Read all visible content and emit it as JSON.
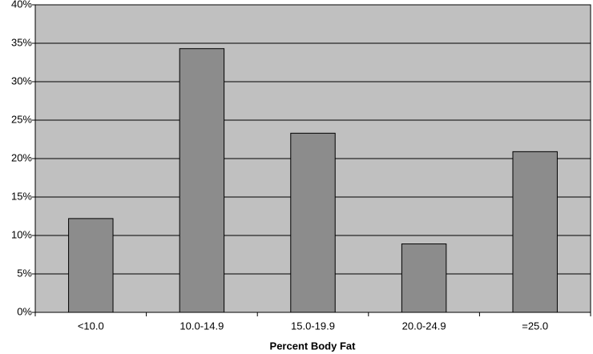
{
  "chart_data": {
    "type": "bar",
    "x_label": "Percent Body Fat",
    "categories": [
      "<10.0",
      "10.0-14.9",
      "15.0-19.9",
      "20.0-24.9",
      "=25.0"
    ],
    "values": [
      12.2,
      34.3,
      23.3,
      8.9,
      20.9
    ],
    "color": "#8c8c8c",
    "background": "#c0c0c0",
    "ylim": [
      0,
      40
    ],
    "yticks": [
      {
        "value": 0,
        "label": "0%"
      },
      {
        "value": 5,
        "label": "5%"
      },
      {
        "value": 10,
        "label": "10%"
      },
      {
        "value": 15,
        "label": "15%"
      },
      {
        "value": 20,
        "label": "20%"
      },
      {
        "value": 25,
        "label": "25%"
      },
      {
        "value": 30,
        "label": "30%"
      },
      {
        "value": 35,
        "label": "35%"
      },
      {
        "value": 40,
        "label": "40%"
      }
    ],
    "grid": true
  }
}
